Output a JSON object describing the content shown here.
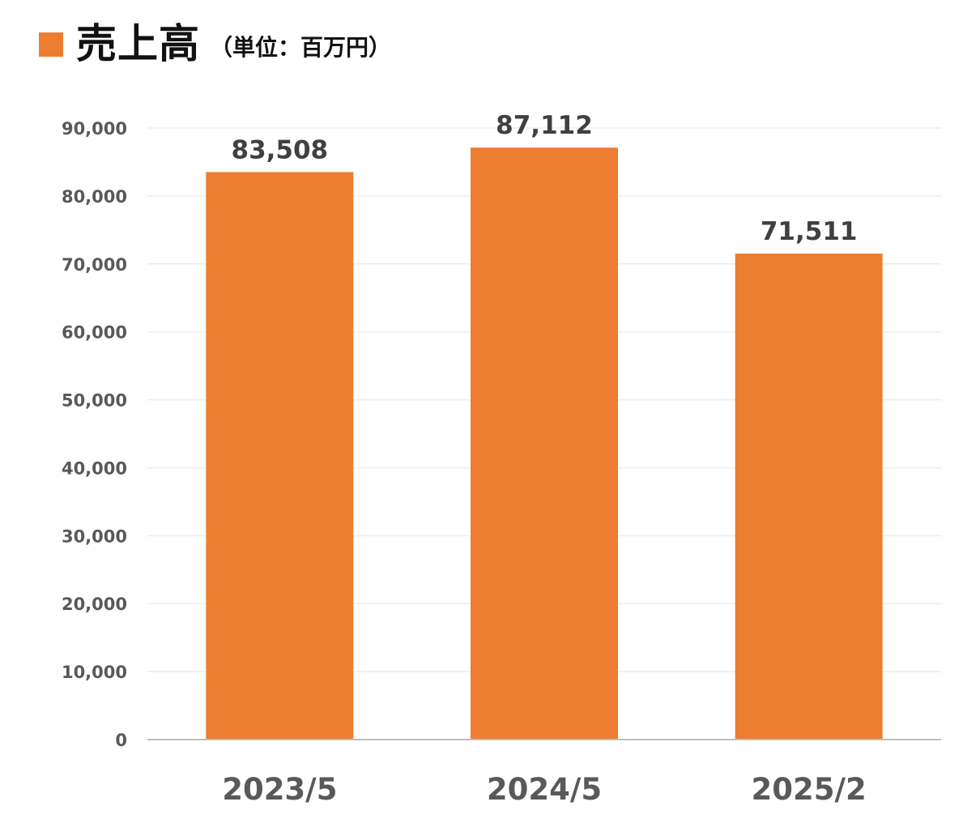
{
  "title": {
    "main": "売上高",
    "unit": "（単位：百万円）",
    "marker_color": "#ED7D31"
  },
  "chart_data": {
    "type": "bar",
    "categories": [
      "2023/5",
      "2024/5",
      "2025/2"
    ],
    "values": [
      83508,
      87112,
      71511
    ],
    "data_labels": [
      "83,508",
      "87,112",
      "71,511"
    ],
    "ylim": [
      0,
      90000
    ],
    "y_ticks": [
      0,
      10000,
      20000,
      30000,
      40000,
      50000,
      60000,
      70000,
      80000,
      90000
    ],
    "y_tick_labels": [
      "0",
      "10,000",
      "20,000",
      "30,000",
      "40,000",
      "50,000",
      "60,000",
      "70,000",
      "80,000",
      "90,000"
    ],
    "bar_color": "#ED7D31",
    "grid": true,
    "legend": "none"
  }
}
